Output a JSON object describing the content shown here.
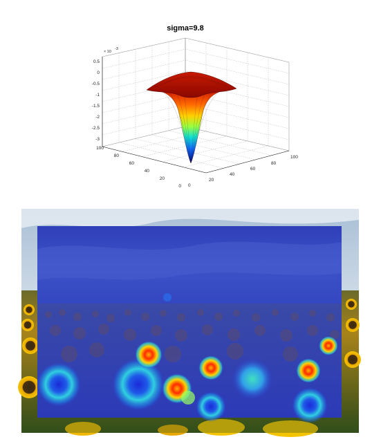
{
  "plot": {
    "title": "sigma=9.8",
    "exponent_label": "× 10",
    "exponent_power": "-3",
    "z_ticks": [
      "0.5",
      "0",
      "-0.5",
      "-1",
      "-1.5",
      "-2",
      "-2.5",
      "-3"
    ],
    "y_ticks": [
      "100",
      "80",
      "60",
      "40",
      "20",
      "0"
    ],
    "x_ticks": [
      "0",
      "20",
      "40",
      "60",
      "80",
      "100"
    ],
    "surface_type": "inverted Laplacian-of-Gaussian (mexican hat)",
    "colormap": "jet",
    "grid": true
  },
  "photo": {
    "subject": "sunflower field under cloudy blue sky",
    "overlay": "blue-tinted saliency heatmap with red/yellow hotspots"
  },
  "colors": {
    "overlay_base": "#2a3fd8",
    "hot": "#ff2a00",
    "warm": "#ffd400",
    "cool": "#35e0d0",
    "sky": "#cfdbe8",
    "sunflower": "#f2b705"
  }
}
